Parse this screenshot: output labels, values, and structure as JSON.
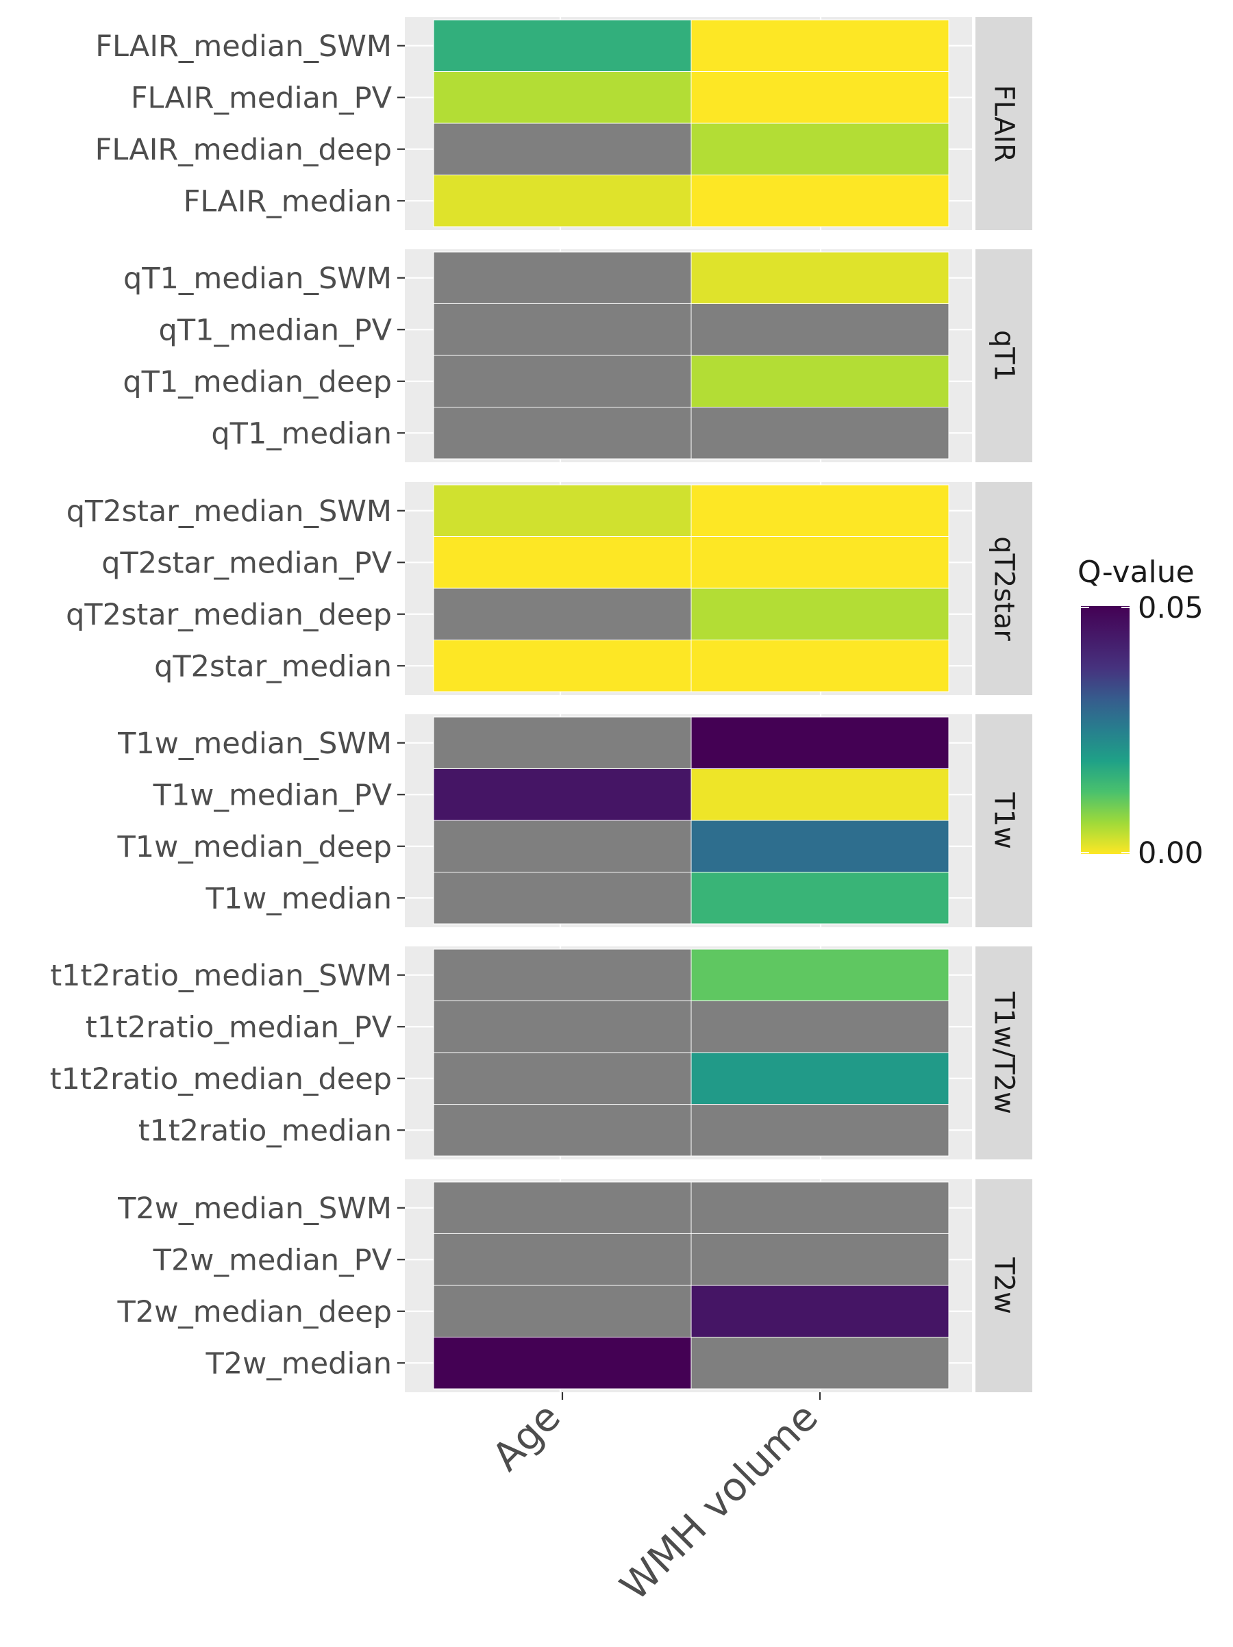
{
  "chart_data": {
    "type": "heatmap",
    "x_categories": [
      "Age",
      "WMH volume"
    ],
    "legend": {
      "title": "Q-value",
      "min": 0.0,
      "max": 0.05,
      "tick_labels": [
        "0.05",
        "0.00"
      ],
      "palette": "viridis (reversed: 0.00 yellow, 0.05 dark purple)",
      "placement": "right"
    },
    "na_color": "#7f7f7f",
    "panel_background": "#ebebeb",
    "strip_background": "#d9d9d9",
    "facets": [
      {
        "label": "FLAIR",
        "rows": [
          {
            "label": "FLAIR_median_SWM",
            "values": [
              0.016,
              0.0
            ]
          },
          {
            "label": "FLAIR_median_PV",
            "values": [
              0.005,
              0.0
            ]
          },
          {
            "label": "FLAIR_median_deep",
            "values": [
              null,
              0.005
            ]
          },
          {
            "label": "FLAIR_median",
            "values": [
              0.002,
              0.0
            ]
          }
        ]
      },
      {
        "label": "qT1",
        "rows": [
          {
            "label": "qT1_median_SWM",
            "values": [
              null,
              0.002
            ]
          },
          {
            "label": "qT1_median_PV",
            "values": [
              null,
              null
            ]
          },
          {
            "label": "qT1_median_deep",
            "values": [
              null,
              0.005
            ]
          },
          {
            "label": "qT1_median",
            "values": [
              null,
              null
            ]
          }
        ]
      },
      {
        "label": "qT2star",
        "rows": [
          {
            "label": "qT2star_median_SWM",
            "values": [
              0.003,
              0.0
            ]
          },
          {
            "label": "qT2star_median_PV",
            "values": [
              0.0,
              0.0
            ]
          },
          {
            "label": "qT2star_median_deep",
            "values": [
              null,
              0.005
            ]
          },
          {
            "label": "qT2star_median",
            "values": [
              0.0,
              0.0
            ]
          }
        ]
      },
      {
        "label": "T1w",
        "rows": [
          {
            "label": "T1w_median_SWM",
            "values": [
              null,
              0.05
            ]
          },
          {
            "label": "T1w_median_PV",
            "values": [
              0.045,
              0.001
            ]
          },
          {
            "label": "T1w_median_deep",
            "values": [
              null,
              0.028
            ]
          },
          {
            "label": "T1w_median",
            "values": [
              null,
              0.015
            ]
          }
        ]
      },
      {
        "label": "T1w/T2w",
        "rows": [
          {
            "label": "t1t2ratio_median_SWM",
            "values": [
              null,
              0.011
            ]
          },
          {
            "label": "t1t2ratio_median_PV",
            "values": [
              null,
              null
            ]
          },
          {
            "label": "t1t2ratio_median_deep",
            "values": [
              null,
              0.02
            ]
          },
          {
            "label": "t1t2ratio_median",
            "values": [
              null,
              null
            ]
          }
        ]
      },
      {
        "label": "T2w",
        "rows": [
          {
            "label": "T2w_median_SWM",
            "values": [
              null,
              null
            ]
          },
          {
            "label": "T2w_median_PV",
            "values": [
              null,
              null
            ]
          },
          {
            "label": "T2w_median_deep",
            "values": [
              null,
              0.045
            ]
          },
          {
            "label": "T2w_median",
            "values": [
              0.05,
              null
            ]
          }
        ]
      }
    ]
  }
}
